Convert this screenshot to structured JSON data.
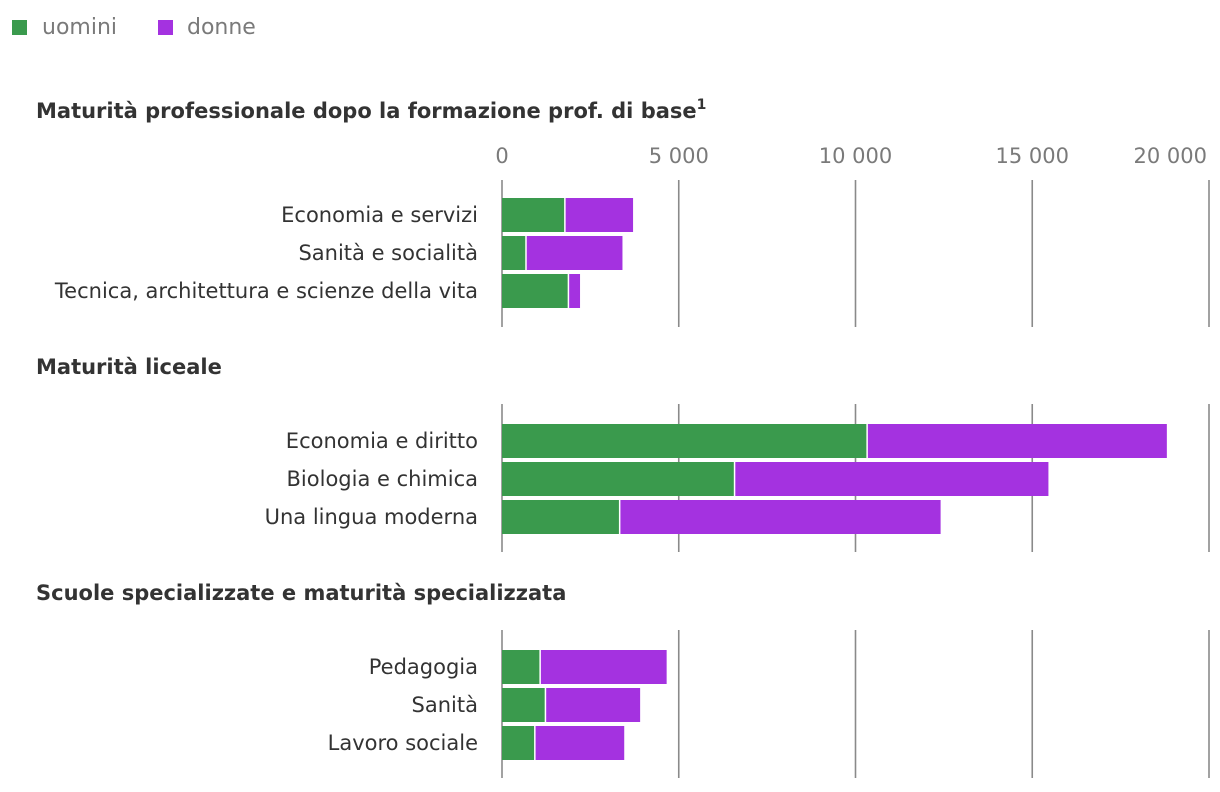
{
  "legend": [
    {
      "name": "uomini",
      "color": "#3a9a4d"
    },
    {
      "name": "donne",
      "color": "#a432e0"
    }
  ],
  "chart_data": {
    "type": "bar",
    "orientation": "horizontal",
    "stacked": true,
    "xlim": [
      0,
      20000
    ],
    "tick_values": [
      0,
      5000,
      10000,
      15000,
      20000
    ],
    "tick_labels": [
      "0",
      "5 000",
      "10 000",
      "15 000",
      "20 000"
    ],
    "grid": true,
    "legend_position": "top-left",
    "panels": [
      {
        "title": "Maturità professionale dopo la formazione prof. di base",
        "title_suffix": "1",
        "categories": [
          "Economia e servizi",
          "Sanità e socialità",
          "Tecnica, architettura e scienze della vita"
        ],
        "series": [
          {
            "name": "uomini",
            "values": [
              1800,
              700,
              1900
            ]
          },
          {
            "name": "donne",
            "values": [
              1950,
              2750,
              350
            ]
          }
        ]
      },
      {
        "title": "Maturità liceale",
        "title_suffix": "",
        "categories": [
          "Economia e diritto",
          "Biologia e chimica",
          "Una lingua moderna"
        ],
        "series": [
          {
            "name": "uomini",
            "values": [
              10350,
              6600,
              3350
            ]
          },
          {
            "name": "donne",
            "values": [
              8500,
              8900,
              9100
            ]
          }
        ]
      },
      {
        "title": "Scuole specializzate e maturità specializzata",
        "title_suffix": "",
        "categories": [
          "Pedagogia",
          "Sanità",
          "Lavoro sociale"
        ],
        "series": [
          {
            "name": "uomini",
            "values": [
              1100,
              1250,
              950
            ]
          },
          {
            "name": "donne",
            "values": [
              3600,
              2700,
              2550
            ]
          }
        ]
      }
    ]
  }
}
